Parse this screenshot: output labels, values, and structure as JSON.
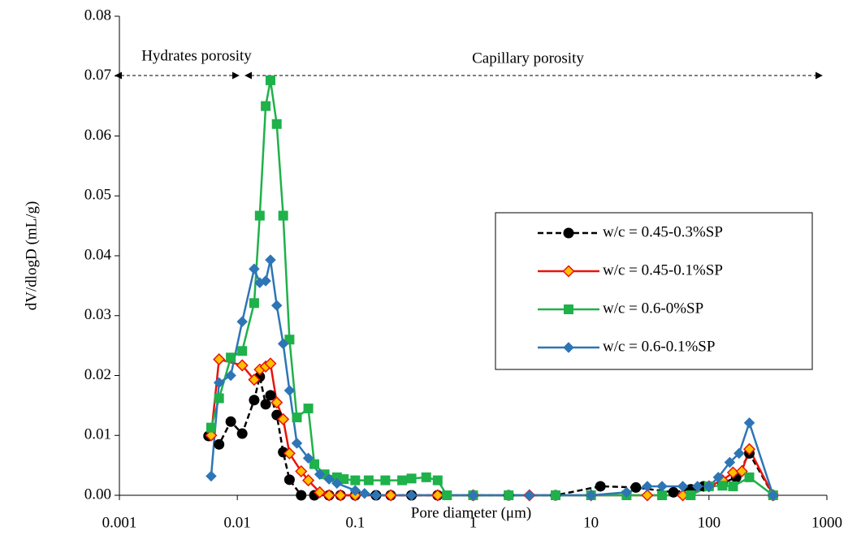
{
  "chart_data": {
    "type": "line",
    "log_x": true,
    "x_label": "Pore diameter (μm)",
    "y_label": "dV/dlogD  (mL/g)",
    "annotations": [
      "Hydrates porosity",
      "Capillary porosity"
    ],
    "xlim": [
      0.001,
      1000
    ],
    "xticks": [
      0.001,
      0.01,
      0.1,
      1,
      10,
      100,
      1000
    ],
    "ylim": [
      0,
      0.08
    ],
    "yticks": [
      {
        "value": 0,
        "label": "0.00"
      },
      {
        "value": 0.01,
        "label": "0.01"
      },
      {
        "value": 0.02,
        "label": "0.02"
      },
      {
        "value": 0.03,
        "label": "0.03"
      },
      {
        "value": 0.04,
        "label": "0.04"
      },
      {
        "value": 0.05,
        "label": "0.05"
      },
      {
        "value": 0.06,
        "label": "0.06"
      },
      {
        "value": 0.07,
        "label": "0.07"
      },
      {
        "value": 0.08,
        "label": "0.08"
      }
    ],
    "series": [
      {
        "name": "w/c = 0.45-0.3%SP",
        "color": "#000000",
        "marker": "circle",
        "dashed": true,
        "x": [
          0.0057,
          0.007,
          0.0088,
          0.011,
          0.0139,
          0.0155,
          0.0174,
          0.0191,
          0.0216,
          0.0245,
          0.0277,
          0.0348,
          0.045,
          0.06,
          0.075,
          0.1,
          0.15,
          0.2,
          0.3,
          0.5,
          1,
          2,
          5,
          12,
          24,
          50,
          70,
          90,
          130,
          170,
          220,
          350
        ],
        "values": [
          0.0099,
          0.0085,
          0.0123,
          0.0103,
          0.0159,
          0.0198,
          0.0152,
          0.0167,
          0.0134,
          0.0072,
          0.0026,
          0,
          0,
          0,
          0,
          0,
          0,
          0,
          0,
          0,
          0,
          0,
          0,
          0.0015,
          0.0013,
          0.0005,
          0.001,
          0.0015,
          0.002,
          0.003,
          0.007,
          0
        ]
      },
      {
        "name": "w/c = 0.45-0.1%SP",
        "color": "#e8130c",
        "marker": "diamond-y",
        "dashed": false,
        "x": [
          0.006,
          0.007,
          0.011,
          0.0139,
          0.0155,
          0.0174,
          0.0191,
          0.0216,
          0.0245,
          0.0277,
          0.0348,
          0.04,
          0.05,
          0.06,
          0.075,
          0.1,
          0.2,
          0.5,
          1,
          3,
          10,
          30,
          60,
          100,
          130,
          160,
          190,
          220,
          350
        ],
        "values": [
          0.01,
          0.0227,
          0.0217,
          0.0193,
          0.021,
          0.0215,
          0.022,
          0.0155,
          0.0127,
          0.007,
          0.004,
          0.0025,
          0.0005,
          0,
          0,
          0,
          0,
          0,
          0,
          0,
          0,
          0,
          0,
          0.0015,
          0.0025,
          0.0038,
          0.004,
          0.0077,
          0
        ]
      },
      {
        "name": "w/c = 0.6-0%SP",
        "color": "#1fb14a",
        "marker": "square",
        "dashed": false,
        "x": [
          0.006,
          0.007,
          0.0088,
          0.011,
          0.0139,
          0.0155,
          0.0174,
          0.0191,
          0.0216,
          0.0245,
          0.0277,
          0.032,
          0.04,
          0.045,
          0.055,
          0.07,
          0.08,
          0.1,
          0.13,
          0.18,
          0.25,
          0.3,
          0.4,
          0.5,
          0.6,
          1,
          2,
          5,
          10,
          20,
          40,
          70,
          100,
          130,
          160,
          220,
          350
        ],
        "values": [
          0.0113,
          0.0162,
          0.023,
          0.0241,
          0.0321,
          0.0467,
          0.065,
          0.0693,
          0.062,
          0.0467,
          0.026,
          0.013,
          0.0145,
          0.0052,
          0.0035,
          0.003,
          0.0027,
          0.0025,
          0.0025,
          0.0025,
          0.0025,
          0.0028,
          0.003,
          0.0025,
          0,
          0,
          0,
          0,
          0,
          0,
          0,
          0,
          0.0015,
          0.0016,
          0.0015,
          0.003,
          0
        ]
      },
      {
        "name": "w/c = 0.6-0.1%SP",
        "color": "#2e75b6",
        "marker": "diamond",
        "dashed": false,
        "x": [
          0.006,
          0.007,
          0.0088,
          0.011,
          0.0139,
          0.0155,
          0.0174,
          0.0191,
          0.0216,
          0.0245,
          0.0277,
          0.032,
          0.04,
          0.05,
          0.06,
          0.07,
          0.1,
          0.12,
          0.15,
          0.3,
          1,
          3,
          10,
          20,
          30,
          40,
          60,
          80,
          100,
          120,
          150,
          180,
          220,
          350
        ],
        "values": [
          0.0032,
          0.0188,
          0.02,
          0.029,
          0.0378,
          0.0355,
          0.0358,
          0.0393,
          0.0317,
          0.0253,
          0.0175,
          0.0087,
          0.0062,
          0.0035,
          0.0027,
          0.002,
          0.0008,
          0.0003,
          0,
          0,
          0,
          0,
          0,
          0.0005,
          0.0015,
          0.0015,
          0.0015,
          0.0015,
          0.0015,
          0.003,
          0.0055,
          0.007,
          0.0121,
          0
        ]
      }
    ]
  }
}
